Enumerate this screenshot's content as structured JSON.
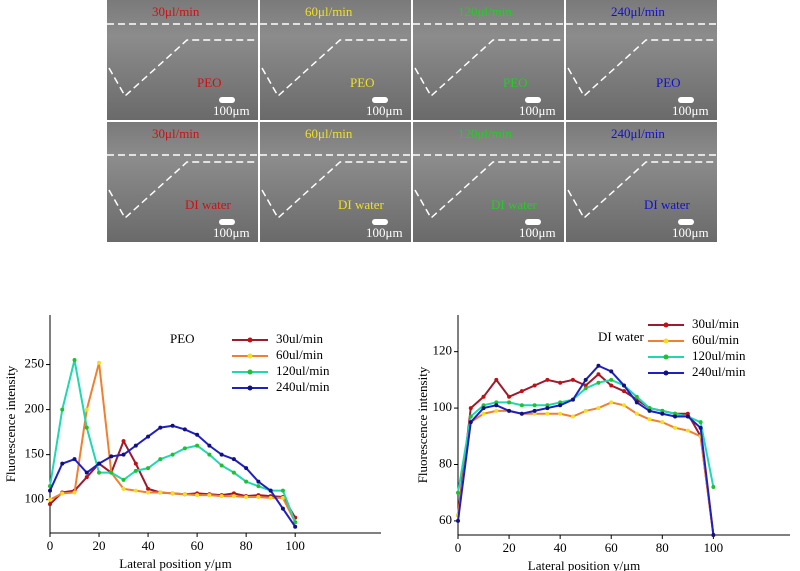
{
  "images": {
    "rates": [
      "30μl/min",
      "60μl/min",
      "120μl/min",
      "240μl/min"
    ],
    "rate_colors": [
      "#d01010",
      "#f0e020",
      "#20d020",
      "#1010d0"
    ],
    "rows": [
      {
        "fluid": "PEO"
      },
      {
        "fluid": "DI water"
      }
    ],
    "scale_bar": "100μm"
  },
  "chart_data": [
    {
      "type": "line",
      "annotation": "PEO",
      "xlabel": "Lateral position y/μm",
      "ylabel": "Fluorescence intensity",
      "x": [
        0,
        5,
        10,
        15,
        20,
        25,
        30,
        35,
        40,
        45,
        50,
        55,
        60,
        65,
        70,
        75,
        80,
        85,
        90,
        95,
        100
      ],
      "series": [
        {
          "name": "30ul/min",
          "color": "#9b1b30",
          "values": [
            95,
            108,
            110,
            125,
            140,
            130,
            165,
            140,
            112,
            108,
            107,
            106,
            107,
            106,
            105,
            107,
            104,
            105,
            104,
            103,
            80
          ]
        },
        {
          "name": "60ul/min",
          "color": "#f08030",
          "values": [
            100,
            107,
            108,
            200,
            252,
            130,
            112,
            110,
            108,
            108,
            107,
            106,
            105,
            105,
            104,
            104,
            103,
            103,
            102,
            102,
            75
          ]
        },
        {
          "name": "120ul/min",
          "color": "#20d8b0",
          "values": [
            115,
            200,
            255,
            180,
            130,
            130,
            122,
            132,
            135,
            145,
            150,
            157,
            160,
            150,
            138,
            130,
            120,
            115,
            110,
            110,
            75
          ]
        },
        {
          "name": "240ul/min",
          "color": "#2020c0",
          "values": [
            110,
            140,
            145,
            130,
            140,
            148,
            150,
            160,
            170,
            180,
            182,
            178,
            172,
            160,
            150,
            145,
            135,
            120,
            110,
            90,
            70
          ]
        }
      ],
      "xlim": [
        0,
        135
      ],
      "ylim": [
        63,
        305
      ],
      "xticks": [
        0,
        20,
        40,
        60,
        80,
        100
      ],
      "yticks": [
        100,
        150,
        200,
        250
      ]
    },
    {
      "type": "line",
      "annotation": "DI water",
      "xlabel": "Lateral position y/μm",
      "ylabel": "Fluorescence intensity",
      "x": [
        0,
        5,
        10,
        15,
        20,
        25,
        30,
        35,
        40,
        45,
        50,
        55,
        60,
        65,
        70,
        75,
        80,
        85,
        90,
        95,
        100
      ],
      "series": [
        {
          "name": "30ul/min",
          "color": "#9b1b30",
          "values": [
            62,
            100,
            104,
            110,
            104,
            106,
            108,
            110,
            109,
            110,
            108,
            112,
            108,
            106,
            103,
            100,
            99,
            98,
            98,
            90,
            55
          ]
        },
        {
          "name": "60ul/min",
          "color": "#f08030",
          "values": [
            62,
            95,
            98,
            99,
            99,
            98,
            98,
            98,
            98,
            97,
            99,
            100,
            102,
            101,
            98,
            96,
            95,
            93,
            92,
            90,
            55
          ]
        },
        {
          "name": "120ul/min",
          "color": "#20d8b0",
          "values": [
            70,
            97,
            101,
            102,
            102,
            101,
            101,
            101,
            102,
            103,
            107,
            109,
            110,
            108,
            104,
            100,
            99,
            98,
            97,
            95,
            72
          ]
        },
        {
          "name": "240ul/min",
          "color": "#2020c0",
          "values": [
            60,
            95,
            100,
            101,
            99,
            98,
            99,
            100,
            101,
            103,
            110,
            115,
            113,
            108,
            102,
            99,
            98,
            97,
            97,
            93,
            55
          ]
        }
      ],
      "xlim": [
        0,
        130
      ],
      "ylim": [
        55,
        133
      ],
      "xticks": [
        0,
        20,
        40,
        60,
        80,
        100
      ],
      "yticks": [
        60,
        80,
        100,
        120
      ]
    }
  ]
}
